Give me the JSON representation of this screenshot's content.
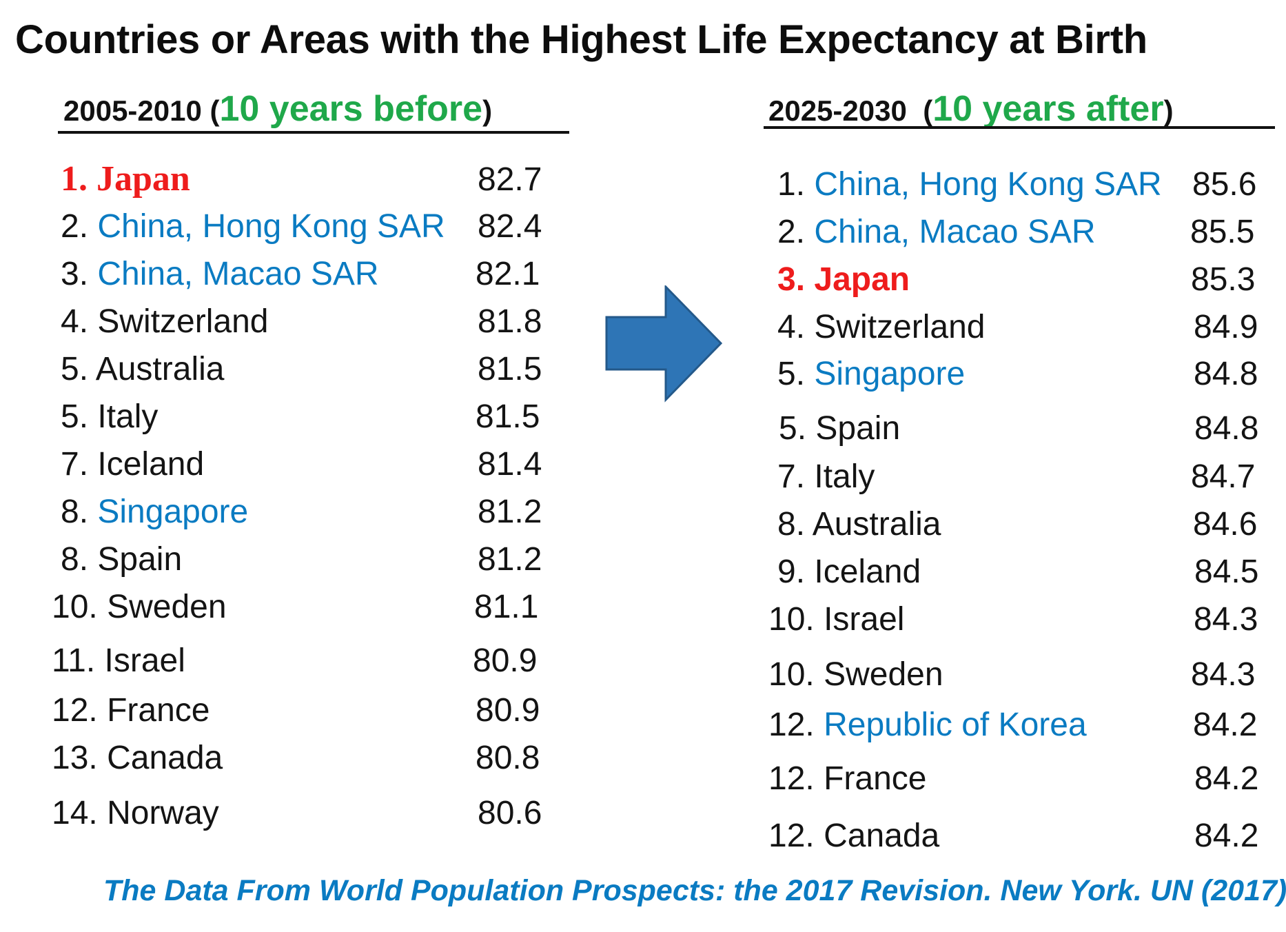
{
  "title": "Countries or Areas with the Highest Life Expectancy at Birth",
  "colors": {
    "blue": "#0a7bc2",
    "red": "#ee1c1c",
    "green": "#1fa84a"
  },
  "left": {
    "period": "2005-2010 (",
    "note": "10 years before",
    "close": ")",
    "rows": [
      {
        "rank": "1.",
        "name": "Japan",
        "value": "82.7"
      },
      {
        "rank": "2.",
        "name": "China, Hong Kong SAR",
        "value": "82.4"
      },
      {
        "rank": "3.",
        "name": "China, Macao SAR",
        "value": "82.1"
      },
      {
        "rank": "4.",
        "name": "Switzerland",
        "value": "81.8"
      },
      {
        "rank": "5.",
        "name": "Australia",
        "value": "81.5"
      },
      {
        "rank": "5.",
        "name": "Italy",
        "value": "81.5"
      },
      {
        "rank": "7.",
        "name": "Iceland",
        "value": "81.4"
      },
      {
        "rank": "8.",
        "name": "Singapore",
        "value": "81.2"
      },
      {
        "rank": "8.",
        "name": "Spain",
        "value": "81.2"
      },
      {
        "rank": "10.",
        "name": "Sweden",
        "value": "81.1"
      },
      {
        "rank": "11.",
        "name": "Israel",
        "value": "80.9"
      },
      {
        "rank": "12.",
        "name": "France",
        "value": "80.9"
      },
      {
        "rank": "13.",
        "name": "Canada",
        "value": "80.8"
      },
      {
        "rank": "14.",
        "name": "Norway",
        "value": "80.6"
      }
    ]
  },
  "right": {
    "period": "2025-2030",
    "open": "(",
    "note": "10 years after",
    "close": ")",
    "rows": [
      {
        "rank": "1.",
        "name": "China, Hong Kong SAR",
        "value": "85.6"
      },
      {
        "rank": "2.",
        "name": "China, Macao SAR",
        "value": "85.5"
      },
      {
        "rank": "3.",
        "name": "Japan",
        "value": "85.3"
      },
      {
        "rank": "4.",
        "name": "Switzerland",
        "value": "84.9"
      },
      {
        "rank": "5.",
        "name": "Singapore",
        "value": "84.8"
      },
      {
        "rank": "5.",
        "name": "Spain",
        "value": "84.8"
      },
      {
        "rank": "7.",
        "name": "Italy",
        "value": "84.7"
      },
      {
        "rank": "8.",
        "name": "Australia",
        "value": "84.6"
      },
      {
        "rank": "9.",
        "name": "Iceland",
        "value": "84.5"
      },
      {
        "rank": "10.",
        "name": "Israel",
        "value": "84.3"
      },
      {
        "rank": "10.",
        "name": "Sweden",
        "value": "84.3"
      },
      {
        "rank": "12.",
        "name": "Republic of Korea",
        "value": "84.2"
      },
      {
        "rank": "12.",
        "name": "France",
        "value": "84.2"
      },
      {
        "rank": "12.",
        "name": "Canada",
        "value": "84.2"
      }
    ]
  },
  "source": "The Data From World Population Prospects: the 2017 Revision. New York. UN (2017)"
}
